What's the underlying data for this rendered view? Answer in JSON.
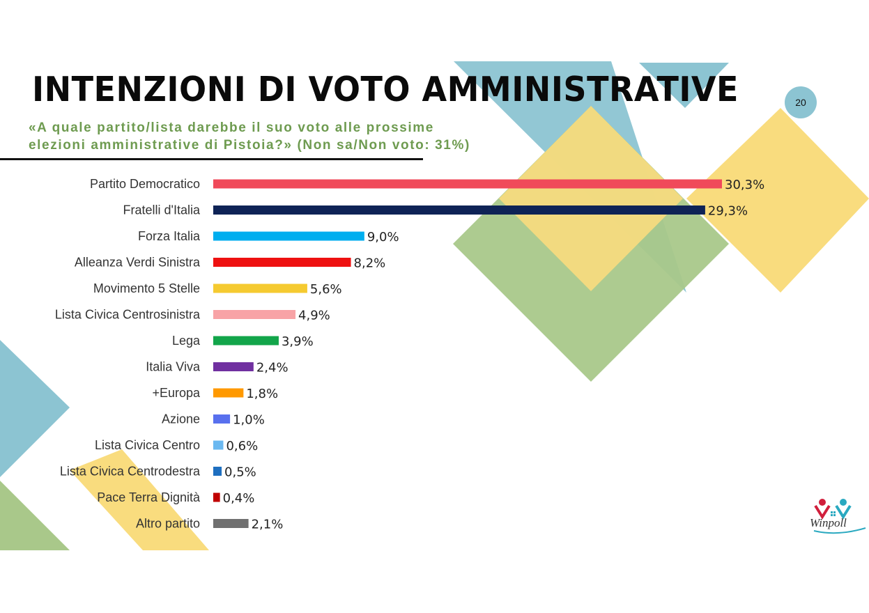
{
  "page": {
    "number": "20"
  },
  "header": {
    "title": "INTENZIONI DI VOTO AMMINISTRATIVE",
    "question_line1": "«A quale partito/lista darebbe il suo voto alle prossime",
    "question_line2": "elezioni amministrative di Pistoia?» (Non sa/Non voto: 31%)"
  },
  "logo": {
    "text": "Winpoll",
    "icon": "winpoll-logo-icon"
  },
  "chart_data": {
    "type": "bar",
    "orientation": "horizontal",
    "title": "",
    "xlabel": "",
    "ylabel": "",
    "xlim": [
      0,
      30.3
    ],
    "grid": false,
    "legend": "none",
    "categories": [
      "Partito Democratico",
      "Fratelli d'Italia",
      "Forza Italia",
      "Alleanza Verdi Sinistra",
      "Movimento 5 Stelle",
      "Lista Civica Centrosinistra",
      "Lega",
      "Italia Viva",
      "+Europa",
      "Azione",
      "Lista Civica Centro",
      "Lista Civica Centrodestra",
      "Pace Terra Dignità",
      "Altro partito"
    ],
    "values": [
      30.3,
      29.3,
      9.0,
      8.2,
      5.6,
      4.9,
      3.9,
      2.4,
      1.8,
      1.0,
      0.6,
      0.5,
      0.4,
      2.1
    ],
    "value_labels": [
      "30,3%",
      "29,3%",
      "9,0%",
      "8,2%",
      "5,6%",
      "4,9%",
      "3,9%",
      "2,4%",
      "1,8%",
      "1,0%",
      "0,6%",
      "0,5%",
      "0,4%",
      "2,1%"
    ],
    "colors": [
      "#f04a5a",
      "#0e2356",
      "#00aeef",
      "#ee1111",
      "#f5ca30",
      "#f8a3a6",
      "#12a54a",
      "#7030a0",
      "#ff9900",
      "#5870ee",
      "#6ab8f0",
      "#1e6fc0",
      "#c00000",
      "#707070"
    ]
  }
}
